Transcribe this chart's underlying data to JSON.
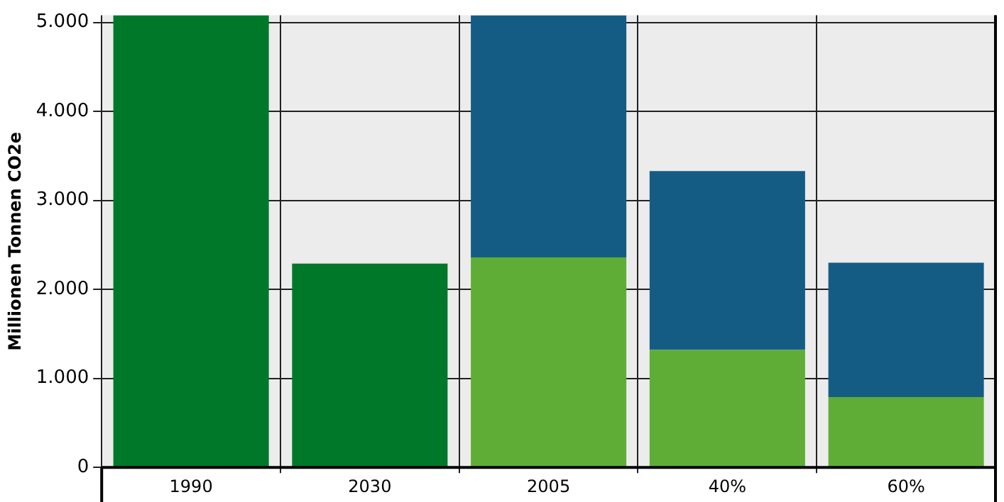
{
  "chart_data": {
    "type": "bar",
    "stacked": true,
    "ylabel": "Millionen Tonnen CO2e",
    "categories": [
      "1990",
      "2030",
      "2005",
      "40%",
      "60%"
    ],
    "series": [
      {
        "colors": [
          "#00782a",
          "#00782a",
          "#5fad36",
          "#5fad36",
          "#5fad36"
        ],
        "values": [
          5080,
          2290,
          2360,
          1320,
          790
        ]
      },
      {
        "color": "#155c85",
        "values": [
          null,
          null,
          2720,
          2010,
          1510
        ]
      }
    ],
    "ylim": [
      0,
      5080
    ],
    "yticks": [
      0,
      {
        "value": 1000,
        "label": "1.000"
      },
      {
        "value": 2000,
        "label": "2.000"
      },
      {
        "value": 3000,
        "label": "3.000"
      },
      {
        "value": 4000,
        "label": "4.000"
      },
      {
        "value": 5000,
        "label": "5.000"
      }
    ],
    "grid": true,
    "legend": false
  }
}
